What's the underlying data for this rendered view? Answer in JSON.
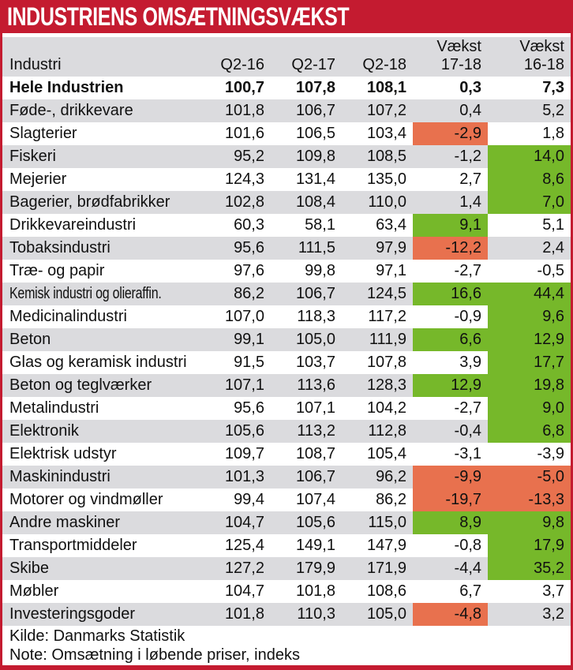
{
  "title": "INDUSTRIENS OMSÆTNINGSVÆKST",
  "footer": {
    "source": "Kilde: Danmarks Statistik",
    "note": "Note: Omsætning i løbende priser, indeks"
  },
  "colors": {
    "banner_red": "#c41b30",
    "stripe_gray": "#dbdbde",
    "highlight_green": "#76b82a",
    "highlight_red": "#e8714e",
    "ink": "#111111"
  },
  "chart_data": {
    "type": "table",
    "title": "INDUSTRIENS OMSÆTNINGSVÆKST",
    "legend_note": "Cells in the two growth columns are highlighted green (strong growth) or red (strong decline)",
    "header": {
      "top": [
        "",
        "",
        "",
        "",
        "Vækst",
        "Vækst"
      ],
      "bottom": [
        "Industri",
        "Q2-16",
        "Q2-17",
        "Q2-18",
        "17-18",
        "16-18"
      ]
    },
    "rows": [
      {
        "label": "Hele Industrien",
        "bold": true,
        "condensed": false,
        "values": [
          "100,7",
          "107,8",
          "108,1",
          "0,3",
          "7,3"
        ],
        "highlights": [
          null,
          null,
          null,
          null,
          null
        ]
      },
      {
        "label": "Føde-, drikkevare",
        "bold": false,
        "condensed": false,
        "values": [
          "101,8",
          "106,7",
          "107,2",
          "0,4",
          "5,2"
        ],
        "highlights": [
          null,
          null,
          null,
          null,
          null
        ]
      },
      {
        "label": "Slagterier",
        "bold": false,
        "condensed": false,
        "values": [
          "101,6",
          "106,5",
          "103,4",
          "-2,9",
          "1,8"
        ],
        "highlights": [
          null,
          null,
          null,
          "red",
          null
        ]
      },
      {
        "label": "Fiskeri",
        "bold": false,
        "condensed": false,
        "values": [
          "95,2",
          "109,8",
          "108,5",
          "-1,2",
          "14,0"
        ],
        "highlights": [
          null,
          null,
          null,
          null,
          "green"
        ]
      },
      {
        "label": "Mejerier",
        "bold": false,
        "condensed": false,
        "values": [
          "124,3",
          "131,4",
          "135,0",
          "2,7",
          "8,6"
        ],
        "highlights": [
          null,
          null,
          null,
          null,
          "green"
        ]
      },
      {
        "label": "Bagerier, brødfabrikker",
        "bold": false,
        "condensed": false,
        "values": [
          "102,8",
          "108,4",
          "110,0",
          "1,4",
          "7,0"
        ],
        "highlights": [
          null,
          null,
          null,
          null,
          "green"
        ]
      },
      {
        "label": "Drikkevareindustri",
        "bold": false,
        "condensed": false,
        "values": [
          "60,3",
          "58,1",
          "63,4",
          "9,1",
          "5,1"
        ],
        "highlights": [
          null,
          null,
          null,
          "green",
          null
        ]
      },
      {
        "label": "Tobaksindustri",
        "bold": false,
        "condensed": false,
        "values": [
          "95,6",
          "111,5",
          "97,9",
          "-12,2",
          "2,4"
        ],
        "highlights": [
          null,
          null,
          null,
          "red",
          null
        ]
      },
      {
        "label": "Træ- og papir",
        "bold": false,
        "condensed": false,
        "values": [
          "97,6",
          "99,8",
          "97,1",
          "-2,7",
          "-0,5"
        ],
        "highlights": [
          null,
          null,
          null,
          null,
          null
        ]
      },
      {
        "label": "Kemisk industri og olieraffin.",
        "bold": false,
        "condensed": true,
        "values": [
          "86,2",
          "106,7",
          "124,5",
          "16,6",
          "44,4"
        ],
        "highlights": [
          null,
          null,
          null,
          "green",
          "green"
        ]
      },
      {
        "label": "Medicinalindustri",
        "bold": false,
        "condensed": false,
        "values": [
          "107,0",
          "118,3",
          "117,2",
          "-0,9",
          "9,6"
        ],
        "highlights": [
          null,
          null,
          null,
          null,
          "green"
        ]
      },
      {
        "label": "Beton",
        "bold": false,
        "condensed": false,
        "values": [
          "99,1",
          "105,0",
          "111,9",
          "6,6",
          "12,9"
        ],
        "highlights": [
          null,
          null,
          null,
          "green",
          "green"
        ]
      },
      {
        "label": "Glas og keramisk industri",
        "bold": false,
        "condensed": false,
        "values": [
          "91,5",
          "103,7",
          "107,8",
          "3,9",
          "17,7"
        ],
        "highlights": [
          null,
          null,
          null,
          null,
          "green"
        ]
      },
      {
        "label": "Beton og teglværker",
        "bold": false,
        "condensed": false,
        "values": [
          "107,1",
          "113,6",
          "128,3",
          "12,9",
          "19,8"
        ],
        "highlights": [
          null,
          null,
          null,
          "green",
          "green"
        ]
      },
      {
        "label": "Metalindustri",
        "bold": false,
        "condensed": false,
        "values": [
          "95,6",
          "107,1",
          "104,2",
          "-2,7",
          "9,0"
        ],
        "highlights": [
          null,
          null,
          null,
          null,
          "green"
        ]
      },
      {
        "label": "Elektronik",
        "bold": false,
        "condensed": false,
        "values": [
          "105,6",
          "113,2",
          "112,8",
          "-0,4",
          "6,8"
        ],
        "highlights": [
          null,
          null,
          null,
          null,
          "green"
        ]
      },
      {
        "label": "Elektrisk udstyr",
        "bold": false,
        "condensed": false,
        "values": [
          "109,7",
          "108,7",
          "105,4",
          "-3,1",
          "-3,9"
        ],
        "highlights": [
          null,
          null,
          null,
          null,
          null
        ]
      },
      {
        "label": "Maskinindustri",
        "bold": false,
        "condensed": false,
        "values": [
          "101,3",
          "106,7",
          "96,2",
          "-9,9",
          "-5,0"
        ],
        "highlights": [
          null,
          null,
          null,
          "red",
          "red"
        ]
      },
      {
        "label": "Motorer og vindmøller",
        "bold": false,
        "condensed": false,
        "values": [
          "99,4",
          "107,4",
          "86,2",
          "-19,7",
          "-13,3"
        ],
        "highlights": [
          null,
          null,
          null,
          "red",
          "red"
        ]
      },
      {
        "label": "Andre maskiner",
        "bold": false,
        "condensed": false,
        "values": [
          "104,7",
          "105,6",
          "115,0",
          "8,9",
          "9,8"
        ],
        "highlights": [
          null,
          null,
          null,
          "green",
          "green"
        ]
      },
      {
        "label": "Transportmiddeler",
        "bold": false,
        "condensed": false,
        "values": [
          "125,4",
          "149,1",
          "147,9",
          "-0,8",
          "17,9"
        ],
        "highlights": [
          null,
          null,
          null,
          null,
          "green"
        ]
      },
      {
        "label": "Skibe",
        "bold": false,
        "condensed": false,
        "values": [
          "127,2",
          "179,9",
          "171,9",
          "-4,4",
          "35,2"
        ],
        "highlights": [
          null,
          null,
          null,
          null,
          "green"
        ]
      },
      {
        "label": "Møbler",
        "bold": false,
        "condensed": false,
        "values": [
          "104,7",
          "101,8",
          "108,6",
          "6,7",
          "3,7"
        ],
        "highlights": [
          null,
          null,
          null,
          null,
          null
        ]
      },
      {
        "label": "Investeringsgoder",
        "bold": false,
        "condensed": false,
        "values": [
          "101,8",
          "110,3",
          "105,0",
          "-4,8",
          "3,2"
        ],
        "highlights": [
          null,
          null,
          null,
          "red",
          null
        ]
      }
    ]
  }
}
